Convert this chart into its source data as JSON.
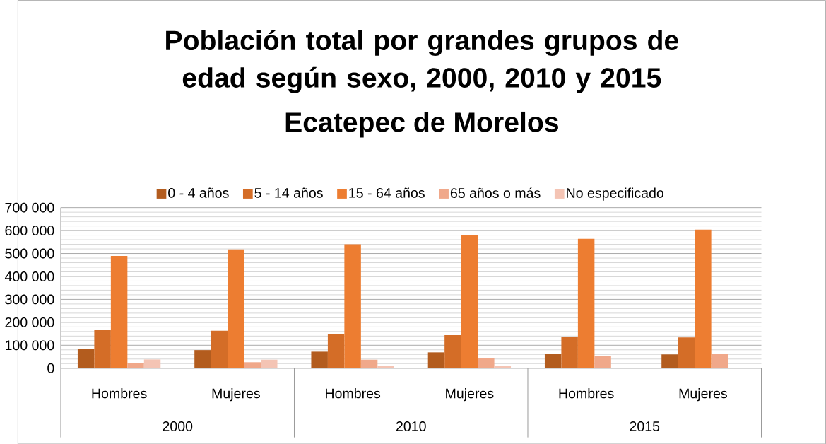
{
  "chart_data": {
    "type": "bar",
    "title": "Población total por grandes grupos de edad según sexo, 2000, 2010 y 2015",
    "subtitle": "Ecatepec de Morelos",
    "categories": [
      "Hombres",
      "Mujeres",
      "Hombres",
      "Mujeres",
      "Hombres",
      "Mujeres"
    ],
    "annotations": [
      "2000",
      "2010",
      "2015"
    ],
    "series": [
      {
        "name": "0 - 4 años",
        "color": "#b35c1e",
        "values": [
          83000,
          79000,
          72000,
          69000,
          61000,
          60000
        ]
      },
      {
        "name": "5 - 14 años",
        "color": "#d46d27",
        "values": [
          166000,
          163000,
          148000,
          144000,
          136000,
          134000
        ]
      },
      {
        "name": "15 - 64 años",
        "color": "#ed7d31",
        "values": [
          489000,
          518000,
          540000,
          580000,
          564000,
          604000
        ]
      },
      {
        "name": "65 años o más",
        "color": "#f0a88a",
        "values": [
          21000,
          26000,
          37000,
          45000,
          52000,
          63000
        ]
      },
      {
        "name": "No especificado",
        "color": "#f4c4b4",
        "values": [
          38000,
          37000,
          11000,
          11000,
          null,
          null
        ]
      }
    ],
    "ylim": [
      0,
      700000
    ],
    "yticks": [
      {
        "value": 0,
        "label": "0"
      },
      {
        "value": 100000,
        "label": "100 000"
      },
      {
        "value": 200000,
        "label": "200 000"
      },
      {
        "value": 300000,
        "label": "300 000"
      },
      {
        "value": 400000,
        "label": "400 000"
      },
      {
        "value": 500000,
        "label": "500 000"
      },
      {
        "value": 600000,
        "label": "600 000"
      },
      {
        "value": 700000,
        "label": "700 000"
      }
    ],
    "grid": true,
    "legend": "top"
  }
}
